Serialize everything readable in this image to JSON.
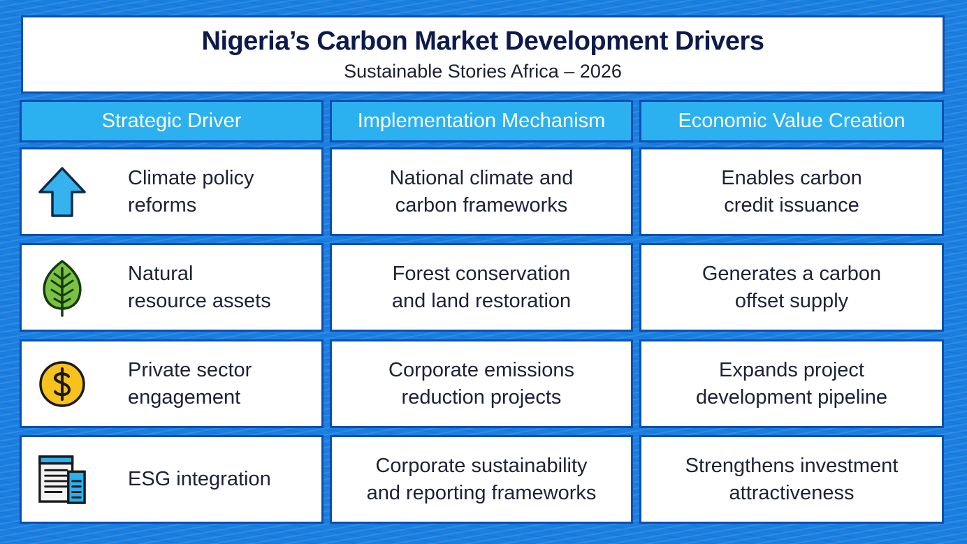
{
  "title": "Nigeria’s Carbon Market Development Drivers",
  "subtitle": "Sustainable Stories Africa – 2026",
  "columns": [
    "Strategic Driver",
    "Implementation Mechanism",
    "Economic Value Creation"
  ],
  "rows": [
    {
      "icon": "up-arrow-icon",
      "driver": [
        "Climate policy",
        "reforms"
      ],
      "mechanism": [
        "National climate and",
        "carbon frameworks"
      ],
      "value": [
        "Enables carbon",
        "credit issuance"
      ]
    },
    {
      "icon": "leaf-icon",
      "driver": [
        "Natural",
        "resource assets"
      ],
      "mechanism": [
        "Forest conservation",
        "and land restoration"
      ],
      "value": [
        "Generates a carbon",
        "offset supply"
      ]
    },
    {
      "icon": "dollar-coin-icon",
      "driver": [
        "Private sector",
        "engagement"
      ],
      "mechanism": [
        "Corporate emissions",
        "reduction projects"
      ],
      "value": [
        "Expands project",
        "development pipeline"
      ]
    },
    {
      "icon": "document-report-icon",
      "driver": [
        "ESG integration"
      ],
      "mechanism": [
        "Corporate sustainability",
        "and reporting frameworks"
      ],
      "value": [
        "Strengthens investment",
        "attractiveness"
      ]
    }
  ],
  "colors": {
    "background": "#1a7fe0",
    "border": "#0b4fb0",
    "header": "#2bb1ef",
    "title": "#0d1b4c",
    "arrow": "#36b3ef",
    "leaf": "#7cc242",
    "coin": "#f7c21d"
  }
}
